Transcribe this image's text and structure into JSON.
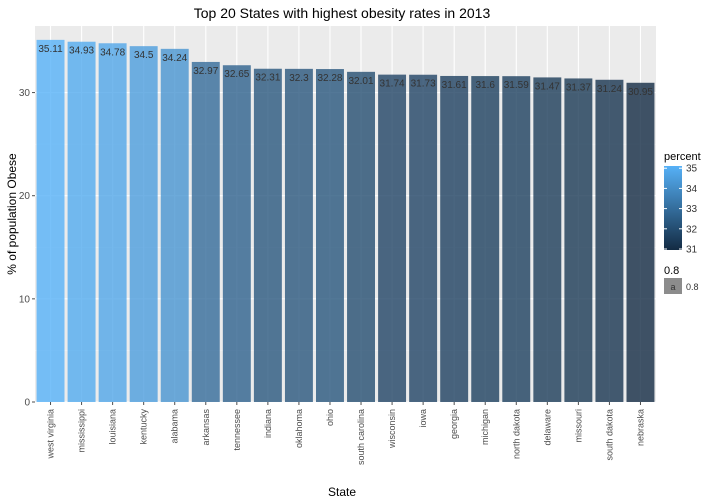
{
  "chart_data": {
    "type": "bar",
    "title": "Top 20 States with highest obesity rates in 2013",
    "xlabel": "State",
    "ylabel": "% of population Obese",
    "ylim": [
      0,
      35.11
    ],
    "yticks": [
      0,
      10,
      20,
      30
    ],
    "grid": true,
    "legend_position": "right",
    "categories": [
      "west virginia",
      "mississippi",
      "louisiana",
      "kentucky",
      "alabama",
      "arkansas",
      "tennessee",
      "indiana",
      "oklahoma",
      "ohio",
      "south carolina",
      "wisconsin",
      "iowa",
      "georgia",
      "michigan",
      "north dakota",
      "delaware",
      "missouri",
      "south dakota",
      "nebraska"
    ],
    "values": [
      35.11,
      34.93,
      34.78,
      34.5,
      34.24,
      32.97,
      32.65,
      32.31,
      32.3,
      32.28,
      32.01,
      31.74,
      31.73,
      31.61,
      31.6,
      31.59,
      31.47,
      31.37,
      31.24,
      30.95
    ],
    "value_labels": [
      "35.11",
      "34.93",
      "34.78",
      "34.5",
      "34.24",
      "32.97",
      "32.65",
      "32.31",
      "32.3",
      "32.28",
      "32.01",
      "31.74",
      "31.73",
      "31.61",
      "31.6",
      "31.59",
      "31.47",
      "31.37",
      "31.24",
      "30.95"
    ],
    "bar_alpha": 0.8,
    "legend": {
      "color_title": "percent",
      "color_breaks": [
        31,
        32,
        33,
        34,
        35
      ],
      "color_low": "#132B43",
      "color_high": "#56B1F7",
      "alpha_title": "0.8",
      "alpha_key_text": "a",
      "alpha_label": "0.8"
    }
  }
}
